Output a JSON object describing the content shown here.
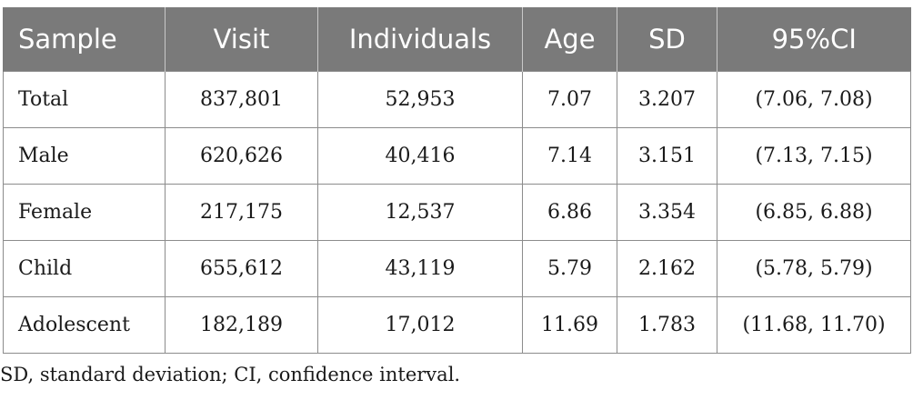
{
  "table": {
    "headers": [
      "Sample",
      "Visit",
      "Individuals",
      "Age",
      "SD",
      "95%CI"
    ],
    "rows": [
      [
        "Total",
        "837,801",
        "52,953",
        "7.07",
        "3.207",
        "(7.06, 7.08)"
      ],
      [
        "Male",
        "620,626",
        "40,416",
        "7.14",
        "3.151",
        "(7.13, 7.15)"
      ],
      [
        "Female",
        "217,175",
        "12,537",
        "6.86",
        "3.354",
        "(6.85, 6.88)"
      ],
      [
        "Child",
        "655,612",
        "43,119",
        "5.79",
        "2.162",
        "(5.78, 5.79)"
      ],
      [
        "Adolescent",
        "182,189",
        "17,012",
        "11.69",
        "1.783",
        "(11.68, 11.70)"
      ]
    ]
  },
  "footnote": "SD, standard deviation; CI, confidence interval.",
  "colors": {
    "header_bg": "#7a7a7a",
    "header_text": "#ffffff",
    "cell_border": "#8c8c8c",
    "body_text": "#1a1a1a"
  }
}
